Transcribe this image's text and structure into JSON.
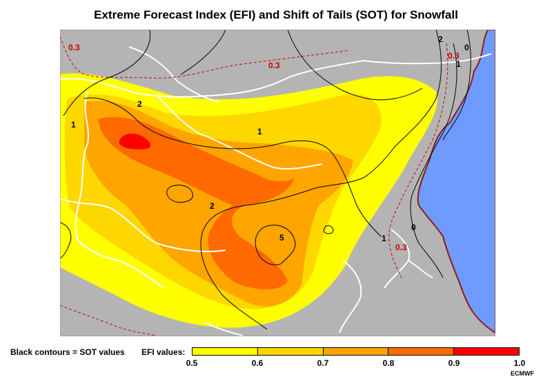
{
  "title": "Extreme Forecast Index (EFI) and Shift of Tails (SOT) for Snowfall",
  "legend": {
    "sot_note": "Black contours = SOT values",
    "efi_label": "EFI values:",
    "bins": [
      {
        "color": "#ffff00"
      },
      {
        "color": "#ffd700"
      },
      {
        "color": "#ffa500"
      },
      {
        "color": "#ff6a00"
      },
      {
        "color": "#ff0000"
      }
    ],
    "ticks": [
      "0.5",
      "0.6",
      "0.7",
      "0.8",
      "0.9",
      "1.0"
    ]
  },
  "map": {
    "land_color": "#b4b4b4",
    "water_color": "#6f9bff",
    "coast_color": "#8b1a1a",
    "border_color": "#ffffff",
    "sot_labels": [
      "1",
      "2",
      "1",
      "2",
      "5",
      "1",
      "0",
      "2",
      "1",
      "0"
    ],
    "dashed_labels": [
      "0.3",
      "0.3",
      "0.3",
      "0.3"
    ]
  },
  "credit": "ECMWF"
}
